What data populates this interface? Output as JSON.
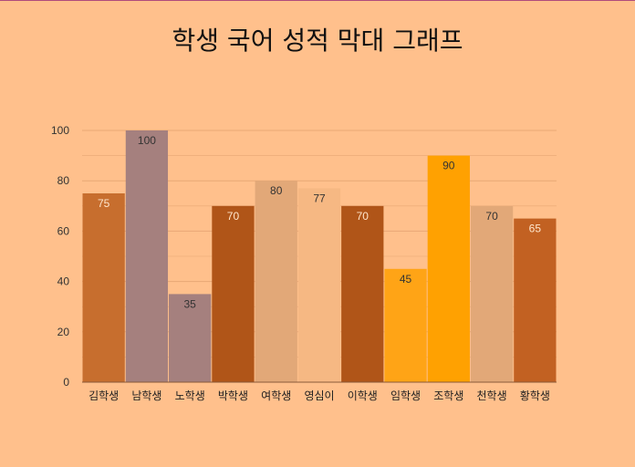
{
  "chart_data": {
    "type": "bar",
    "title": "학생 국어 성적 막대 그래프",
    "categories": [
      "김학생",
      "남학생",
      "노학생",
      "박학생",
      "여학생",
      "영심이",
      "이학생",
      "임학생",
      "조학생",
      "천학생",
      "황학생"
    ],
    "values": [
      75,
      100,
      35,
      70,
      80,
      77,
      70,
      45,
      90,
      70,
      65
    ],
    "bar_colors": [
      "#C76E2E",
      "#A5807E",
      "#A5807E",
      "#B05518",
      "#E2A878",
      "#F6B883",
      "#B05518",
      "#FFA416",
      "#FFA101",
      "#E2A878",
      "#C26122"
    ],
    "label_colors": [
      "#FFE6CC",
      "#333333",
      "#333333",
      "#FFE6CC",
      "#333333",
      "#333333",
      "#FFE6CC",
      "#333333",
      "#333333",
      "#333333",
      "#FFE6CC"
    ],
    "ylim": [
      0,
      100
    ],
    "yticks": [
      0,
      20,
      40,
      60,
      80,
      100
    ],
    "grid": true,
    "legend": "none",
    "background": "#FFC08C",
    "gridline_color": "#E8A775"
  }
}
